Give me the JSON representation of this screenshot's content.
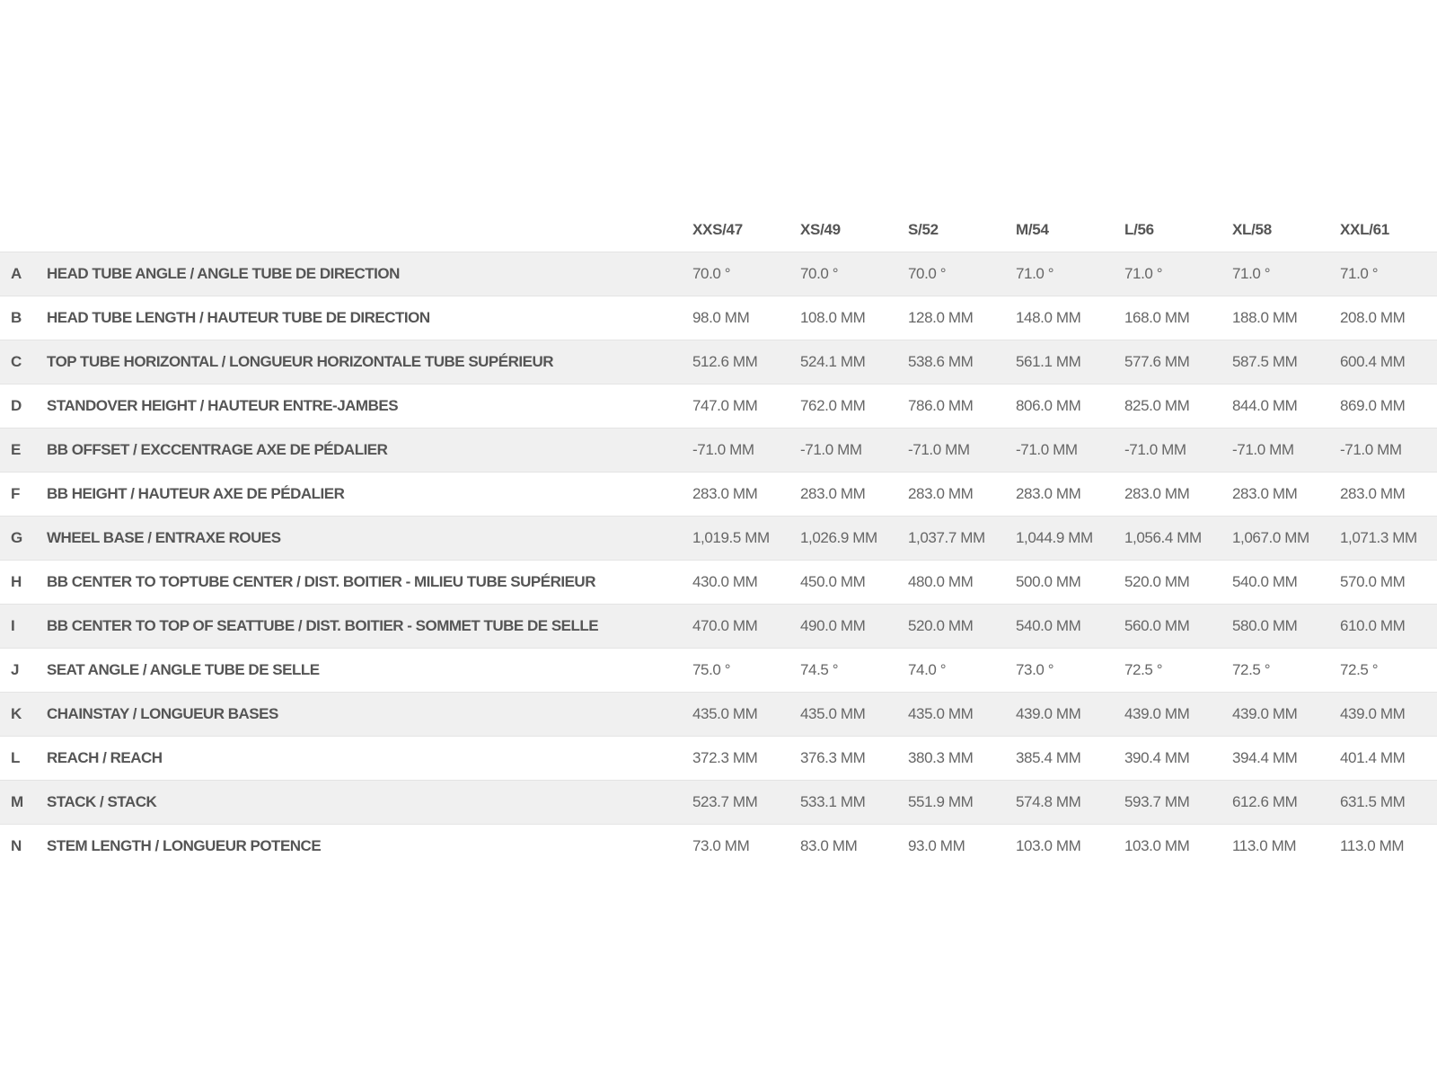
{
  "sizes": [
    "XXS/47",
    "XS/49",
    "S/52",
    "M/54",
    "L/56",
    "XL/58",
    "XXL/61"
  ],
  "rows": [
    {
      "letter": "A",
      "name": "HEAD TUBE ANGLE / ANGLE TUBE DE DIRECTION",
      "values": [
        "70.0 °",
        "70.0 °",
        "70.0 °",
        "71.0 °",
        "71.0 °",
        "71.0 °",
        "71.0 °"
      ]
    },
    {
      "letter": "B",
      "name": "HEAD TUBE LENGTH / HAUTEUR TUBE DE DIRECTION",
      "values": [
        "98.0 MM",
        "108.0 MM",
        "128.0 MM",
        "148.0 MM",
        "168.0 MM",
        "188.0 MM",
        "208.0 MM"
      ]
    },
    {
      "letter": "C",
      "name": "TOP TUBE HORIZONTAL / LONGUEUR HORIZONTALE TUBE SUPÉRIEUR",
      "values": [
        "512.6 MM",
        "524.1 MM",
        "538.6 MM",
        "561.1 MM",
        "577.6 MM",
        "587.5 MM",
        "600.4 MM"
      ]
    },
    {
      "letter": "D",
      "name": "STANDOVER HEIGHT / HAUTEUR ENTRE-JAMBES",
      "values": [
        "747.0 MM",
        "762.0 MM",
        "786.0 MM",
        "806.0 MM",
        "825.0 MM",
        "844.0 MM",
        "869.0 MM"
      ]
    },
    {
      "letter": "E",
      "name": "BB OFFSET / EXCCENTRAGE AXE DE PÉDALIER",
      "values": [
        "-71.0 MM",
        "-71.0 MM",
        "-71.0 MM",
        "-71.0 MM",
        "-71.0 MM",
        "-71.0 MM",
        "-71.0 MM"
      ]
    },
    {
      "letter": "F",
      "name": "BB HEIGHT / HAUTEUR AXE DE PÉDALIER",
      "values": [
        "283.0 MM",
        "283.0 MM",
        "283.0 MM",
        "283.0 MM",
        "283.0 MM",
        "283.0 MM",
        "283.0 MM"
      ]
    },
    {
      "letter": "G",
      "name": "WHEEL BASE / ENTRAXE ROUES",
      "values": [
        "1,019.5 MM",
        "1,026.9 MM",
        "1,037.7 MM",
        "1,044.9 MM",
        "1,056.4 MM",
        "1,067.0 MM",
        "1,071.3 MM"
      ]
    },
    {
      "letter": "H",
      "name": "BB CENTER TO TOPTUBE CENTER / DIST. BOITIER - MILIEU TUBE SUPÉRIEUR",
      "values": [
        "430.0 MM",
        "450.0 MM",
        "480.0 MM",
        "500.0 MM",
        "520.0 MM",
        "540.0 MM",
        "570.0 MM"
      ]
    },
    {
      "letter": "I",
      "name": "BB CENTER TO TOP OF SEATTUBE / DIST. BOITIER - SOMMET TUBE DE SELLE",
      "values": [
        "470.0 MM",
        "490.0 MM",
        "520.0 MM",
        "540.0 MM",
        "560.0 MM",
        "580.0 MM",
        "610.0 MM"
      ]
    },
    {
      "letter": "J",
      "name": "SEAT ANGLE / ANGLE TUBE DE SELLE",
      "values": [
        "75.0 °",
        "74.5 °",
        "74.0 °",
        "73.0 °",
        "72.5 °",
        "72.5 °",
        "72.5 °"
      ]
    },
    {
      "letter": "K",
      "name": "CHAINSTAY / LONGUEUR BASES",
      "values": [
        "435.0 MM",
        "435.0 MM",
        "435.0 MM",
        "439.0 MM",
        "439.0 MM",
        "439.0 MM",
        "439.0 MM"
      ]
    },
    {
      "letter": "L",
      "name": "REACH / REACH",
      "values": [
        "372.3 MM",
        "376.3 MM",
        "380.3 MM",
        "385.4 MM",
        "390.4 MM",
        "394.4 MM",
        "401.4 MM"
      ]
    },
    {
      "letter": "M",
      "name": "STACK / STACK",
      "values": [
        "523.7 MM",
        "533.1 MM",
        "551.9 MM",
        "574.8 MM",
        "593.7 MM",
        "612.6 MM",
        "631.5 MM"
      ]
    },
    {
      "letter": "N",
      "name": "STEM LENGTH / LONGUEUR POTENCE",
      "values": [
        "73.0 MM",
        "83.0 MM",
        "93.0 MM",
        "103.0 MM",
        "103.0 MM",
        "113.0 MM",
        "113.0 MM"
      ]
    }
  ]
}
